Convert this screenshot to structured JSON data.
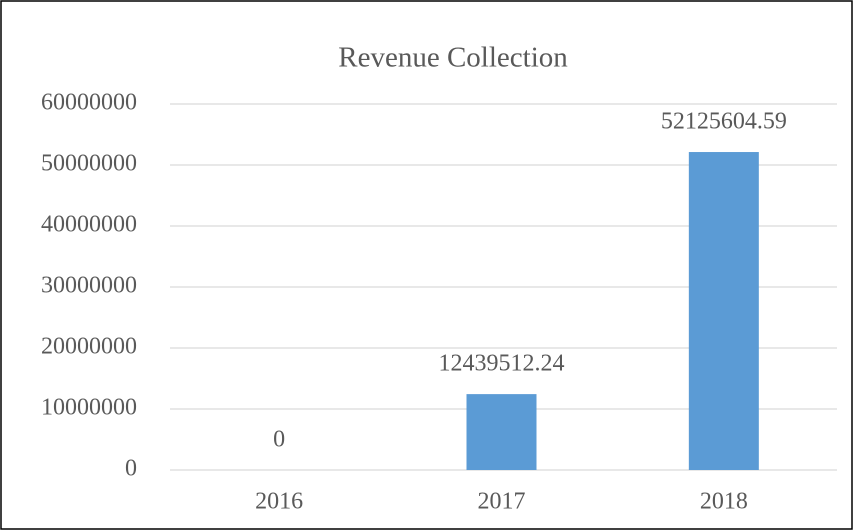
{
  "chart_data": {
    "type": "bar",
    "title": "Revenue Collection",
    "categories": [
      "2016",
      "2017",
      "2018"
    ],
    "values": [
      0,
      12439512.24,
      52125604.59
    ],
    "color": "#5b9bd5",
    "ylim": [
      0,
      60000000
    ],
    "yticks": [
      0,
      10000000,
      20000000,
      30000000,
      40000000,
      50000000,
      60000000
    ],
    "grid": true,
    "data_labels": true
  }
}
